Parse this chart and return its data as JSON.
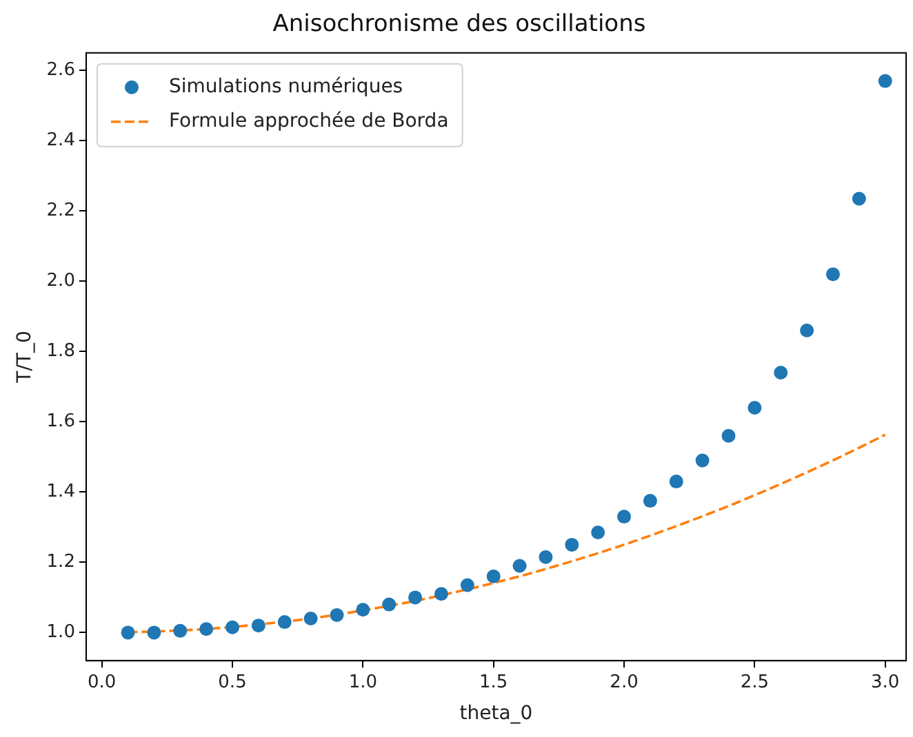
{
  "chart_data": {
    "type": "scatter",
    "title": "Anisochronisme des oscillations",
    "xlabel": "theta_0",
    "ylabel": "T/T_0",
    "x": [
      0.1,
      0.2,
      0.3,
      0.4,
      0.5,
      0.6,
      0.7,
      0.8,
      0.9,
      1.0,
      1.1,
      1.2,
      1.3,
      1.4,
      1.5,
      1.6,
      1.7,
      1.8,
      1.9,
      2.0,
      2.1,
      2.2,
      2.3,
      2.4,
      2.5,
      2.6,
      2.7,
      2.8,
      2.9,
      3.0
    ],
    "series": [
      {
        "name": "Simulations numériques",
        "type": "scatter",
        "color": "#1f77b4",
        "marker": "circle",
        "values": [
          1.0,
          1.0,
          1.005,
          1.01,
          1.015,
          1.02,
          1.03,
          1.04,
          1.05,
          1.065,
          1.08,
          1.1,
          1.11,
          1.135,
          1.16,
          1.19,
          1.215,
          1.25,
          1.285,
          1.33,
          1.375,
          1.43,
          1.49,
          1.56,
          1.64,
          1.74,
          1.86,
          2.02,
          2.235,
          2.57
        ]
      },
      {
        "name": "Formule approchée de Borda",
        "type": "line",
        "color": "#ff7f0e",
        "marker": "none",
        "line_style": "dashed",
        "values": [
          1.001,
          1.003,
          1.006,
          1.01,
          1.016,
          1.023,
          1.031,
          1.04,
          1.051,
          1.063,
          1.076,
          1.09,
          1.106,
          1.123,
          1.141,
          1.16,
          1.181,
          1.203,
          1.226,
          1.25,
          1.276,
          1.303,
          1.331,
          1.36,
          1.391,
          1.423,
          1.456,
          1.49,
          1.526,
          1.563
        ]
      }
    ],
    "xlim": [
      -0.06,
      3.08
    ],
    "xticks": [
      {
        "value": 0,
        "label": "0.0"
      },
      0.5,
      {
        "value": 1,
        "label": "1.0"
      },
      1.5,
      {
        "value": 2,
        "label": "2.0"
      },
      2.5,
      {
        "value": 3,
        "label": "3.0"
      }
    ],
    "ylim": [
      0.92,
      2.65
    ],
    "yticks": [
      {
        "value": 1,
        "label": "1.0"
      },
      1.2,
      1.4,
      1.6,
      1.8,
      {
        "value": 2,
        "label": "2.0"
      },
      2.2,
      2.4,
      2.6
    ],
    "grid": false,
    "legend": "top left"
  }
}
